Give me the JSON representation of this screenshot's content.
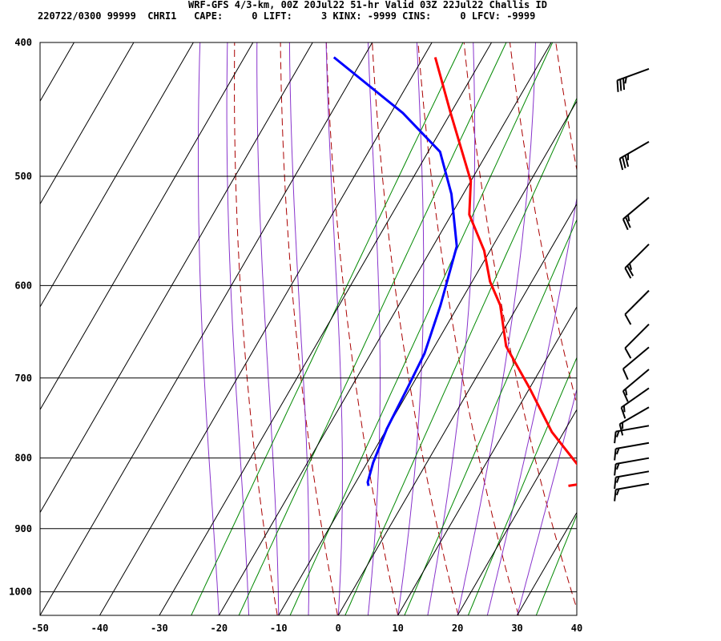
{
  "header": {
    "line1": "WRF-GFS 4/3-km, 00Z 20Jul22 51-hr Valid 03Z 22Jul22 Challis ID",
    "line2": "220722/0300 99999  CHRI1   CAPE:     0 LIFT:     3 KINX: -9999 CINS:     0 LFCV: -9999"
  },
  "colors": {
    "temperature": "#ff0000",
    "dewpoint": "#0000ff",
    "dry_adiabat": "#aa0000",
    "moist_adiabat": "#8833cc",
    "mixing_ratio": "#008800",
    "grid": "#000000"
  },
  "chart_data": {
    "type": "line",
    "title": "",
    "xlabel": "",
    "ylabel": "",
    "x_axis": "temperature (C)",
    "y_axis": "pressure (hPa), log scale",
    "xlim": [
      -50,
      40
    ],
    "ylim": [
      1040,
      400
    ],
    "x_ticks": [
      -50,
      -40,
      -30,
      -20,
      -10,
      0,
      10,
      20,
      30,
      40
    ],
    "x_tick_labels": [
      "-50",
      "-40",
      "-30",
      "-20",
      "-10",
      "0",
      "10",
      "20",
      "30",
      "40"
    ],
    "y_ticks": [
      400,
      500,
      600,
      700,
      800,
      900,
      1000
    ],
    "y_tick_labels": [
      "400",
      "500",
      "600",
      "700",
      "800",
      "900",
      "1000"
    ],
    "grid": true,
    "series": [
      {
        "role": "temperature",
        "points": [
          [
            26.0,
            838
          ],
          [
            29.5,
            833
          ],
          [
            26,
            812
          ],
          [
            18,
            766
          ],
          [
            10,
            712
          ],
          [
            2,
            664
          ],
          [
            -3,
            620
          ],
          [
            -7,
            596
          ],
          [
            -11,
            566
          ],
          [
            -17,
            533
          ],
          [
            -20,
            504
          ],
          [
            -30,
            450
          ],
          [
            -38,
            410
          ]
        ]
      },
      {
        "role": "dewpoint",
        "points": [
          [
            -7.5,
            838
          ],
          [
            -8,
            833
          ],
          [
            -9,
            806
          ],
          [
            -10,
            762
          ],
          [
            -10.5,
            712
          ],
          [
            -11,
            672
          ],
          [
            -13,
            620
          ],
          [
            -16,
            562
          ],
          [
            -22,
            515
          ],
          [
            -28,
            480
          ],
          [
            -38,
            450
          ],
          [
            -55,
            410
          ]
        ]
      }
    ],
    "wind_barbs": [
      {
        "p": 835,
        "dir": 260,
        "kt": 15
      },
      {
        "p": 818,
        "dir": 260,
        "kt": 15
      },
      {
        "p": 800,
        "dir": 260,
        "kt": 15
      },
      {
        "p": 780,
        "dir": 260,
        "kt": 15
      },
      {
        "p": 758,
        "dir": 260,
        "kt": 15
      },
      {
        "p": 735,
        "dir": 240,
        "kt": 15
      },
      {
        "p": 712,
        "dir": 235,
        "kt": 15
      },
      {
        "p": 690,
        "dir": 230,
        "kt": 15
      },
      {
        "p": 665,
        "dir": 230,
        "kt": 10
      },
      {
        "p": 640,
        "dir": 225,
        "kt": 10
      },
      {
        "p": 605,
        "dir": 225,
        "kt": 10
      },
      {
        "p": 560,
        "dir": 225,
        "kt": 25
      },
      {
        "p": 518,
        "dir": 230,
        "kt": 25
      },
      {
        "p": 472,
        "dir": 240,
        "kt": 35
      },
      {
        "p": 418,
        "dir": 250,
        "kt": 35
      }
    ],
    "background_lines": {
      "dry_adiabats_K": [
        260,
        270,
        280,
        290,
        300,
        310,
        320,
        330,
        340,
        350,
        360,
        370,
        380
      ],
      "moist_adiabats_C": [
        -20,
        -15,
        -10,
        -5,
        0,
        5,
        10,
        15,
        20,
        25,
        30
      ],
      "mixing_ratio_gkg": [
        0.5,
        1,
        2,
        4,
        8,
        16,
        32
      ]
    }
  }
}
